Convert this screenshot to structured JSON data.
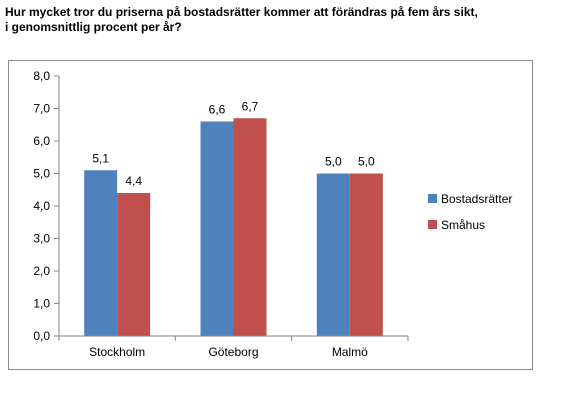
{
  "question": {
    "line1": "Hur mycket tror du priserna på bostadsrätter kommer att förändras på fem års sikt,",
    "line2": "i genomsnittlig procent per år?"
  },
  "chart_data": {
    "type": "bar",
    "title": "Hur mycket tror du priserna på bostadsrätter kommer att förändras på fem års sikt, i genomsnittlig procent per år?",
    "xlabel": "",
    "ylabel": "",
    "categories": [
      "Stockholm",
      "Göteborg",
      "Malmö"
    ],
    "series": [
      {
        "name": "Bostadsrätter",
        "values": [
          5.1,
          6.6,
          5.0
        ],
        "labels": [
          "5,1",
          "6,6",
          "5,0"
        ],
        "color": "#4f81bd"
      },
      {
        "name": "Småhus",
        "values": [
          4.4,
          6.7,
          5.0
        ],
        "labels": [
          "4,4",
          "6,7",
          "5,0"
        ],
        "color": "#c0504d"
      }
    ],
    "ylim": [
      0,
      8
    ],
    "yticks": [
      0,
      1,
      2,
      3,
      4,
      5,
      6,
      7,
      8
    ],
    "ytick_labels": [
      "0,0",
      "1,0",
      "2,0",
      "3,0",
      "4,0",
      "5,0",
      "6,0",
      "7,0",
      "8,0"
    ],
    "grid": false,
    "legend": "right"
  }
}
